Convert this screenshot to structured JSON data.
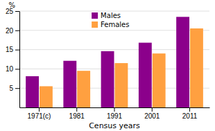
{
  "chart_data": {
    "type": "bar",
    "categories": [
      "1971(c)",
      "1981",
      "1991",
      "2001",
      "2011"
    ],
    "series": [
      {
        "name": "Males",
        "color": "#8B008B",
        "values": [
          8.1,
          12.1,
          14.6,
          16.8,
          23.5
        ]
      },
      {
        "name": "Females",
        "color": "#FFA040",
        "values": [
          5.5,
          9.5,
          11.5,
          14.0,
          20.5
        ]
      }
    ],
    "ylabel": "%",
    "xlabel": "Census years",
    "ylim": [
      0,
      25
    ],
    "yticks": [
      5,
      10,
      15,
      20,
      25
    ],
    "grid": true,
    "legend": "top"
  }
}
